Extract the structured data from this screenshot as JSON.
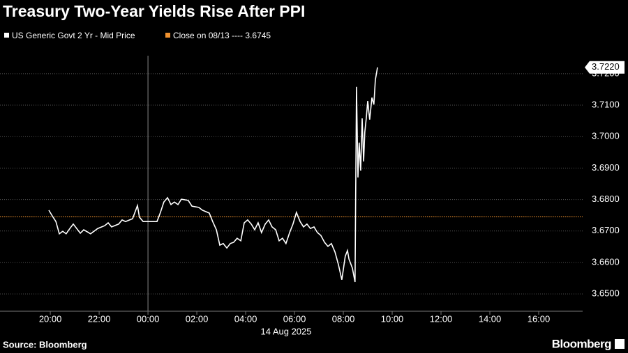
{
  "chart_data": {
    "type": "line",
    "title": "Treasury Two-Year Yields Rise After PPI",
    "series": [
      {
        "name": "US Generic Govt 2 Yr - Mid Price",
        "color": "#ffffff",
        "end_label": "3.7220",
        "x": [
          -4.06,
          -3.92,
          -3.77,
          -3.63,
          -3.49,
          -3.35,
          -3.2,
          -3.06,
          -2.92,
          -2.77,
          -2.63,
          -2.35,
          -2.06,
          -1.77,
          -1.63,
          -1.49,
          -1.2,
          -1.06,
          -0.92,
          -0.63,
          -0.43,
          -0.35,
          -0.2,
          0.08,
          0.37,
          0.51,
          0.65,
          0.8,
          0.94,
          1.08,
          1.23,
          1.37,
          1.65,
          1.8,
          2.08,
          2.23,
          2.51,
          2.65,
          2.8,
          2.94,
          3.08,
          3.23,
          3.37,
          3.51,
          3.65,
          3.8,
          3.94,
          4.08,
          4.23,
          4.37,
          4.51,
          4.65,
          4.8,
          4.94,
          5.08,
          5.23,
          5.37,
          5.51,
          5.65,
          5.8,
          5.94,
          6.08,
          6.23,
          6.37,
          6.51,
          6.65,
          6.8,
          6.94,
          7.08,
          7.23,
          7.37,
          7.51,
          7.66,
          7.8,
          7.94,
          8.08,
          8.17,
          8.23,
          8.37,
          8.48,
          8.54,
          8.6,
          8.65,
          8.71,
          8.77,
          8.83,
          8.88,
          8.94,
          9.0,
          9.08,
          9.17,
          9.25,
          9.31,
          9.4
        ],
        "values": [
          3.6766,
          3.6748,
          3.673,
          3.6691,
          3.6699,
          3.6691,
          3.6708,
          3.6722,
          3.6708,
          3.6693,
          3.6704,
          3.6691,
          3.6708,
          3.6717,
          3.6726,
          3.6713,
          3.6722,
          3.6735,
          3.673,
          3.6739,
          3.6781,
          3.6744,
          3.673,
          3.673,
          3.673,
          3.6759,
          3.6792,
          3.6806,
          3.6784,
          3.6792,
          3.6784,
          3.6801,
          3.6797,
          3.6779,
          3.6775,
          3.6766,
          3.6757,
          3.673,
          3.6704,
          3.6655,
          3.666,
          3.6646,
          3.666,
          3.6664,
          3.6677,
          3.6669,
          3.6726,
          3.6735,
          3.6722,
          3.6704,
          3.6726,
          3.6695,
          3.6722,
          3.6735,
          3.6713,
          3.6704,
          3.6669,
          3.6677,
          3.666,
          3.6695,
          3.6722,
          3.6759,
          3.673,
          3.6713,
          3.6722,
          3.6708,
          3.6713,
          3.6695,
          3.6686,
          3.6664,
          3.6651,
          3.666,
          3.6633,
          3.6593,
          3.6545,
          3.662,
          3.6638,
          3.6611,
          3.6582,
          3.6538,
          3.7158,
          3.687,
          3.6981,
          3.6892,
          3.7058,
          3.6921,
          3.7014,
          3.7058,
          3.7113,
          3.7054,
          3.7124,
          3.7102,
          3.718,
          3.722
        ]
      }
    ],
    "reference_line": {
      "name": "Close on 08/13 ----",
      "value": 3.6745,
      "color": "#f0922f"
    },
    "xlim": [
      -6.06,
      17.8
    ],
    "xticks": [
      {
        "value": -4,
        "label": "20:00"
      },
      {
        "value": -2,
        "label": "22:00"
      },
      {
        "value": 0,
        "label": "00:00"
      },
      {
        "value": 2,
        "label": "02:00"
      },
      {
        "value": 4,
        "label": "04:00"
      },
      {
        "value": 6,
        "label": "06:00"
      },
      {
        "value": 8,
        "label": "08:00"
      },
      {
        "value": 10,
        "label": "10:00"
      },
      {
        "value": 12,
        "label": "12:00"
      },
      {
        "value": 14,
        "label": "14:00"
      },
      {
        "value": 16,
        "label": "16:00"
      }
    ],
    "date_label": {
      "value": 0,
      "label": "14 Aug 2025"
    },
    "ylim": [
      3.6445,
      3.7235
    ],
    "yticks": [
      {
        "value": 3.65,
        "label": "3.6500"
      },
      {
        "value": 3.66,
        "label": "3.6600"
      },
      {
        "value": 3.67,
        "label": "3.6700"
      },
      {
        "value": 3.68,
        "label": "3.6800"
      },
      {
        "value": 3.69,
        "label": "3.6900"
      },
      {
        "value": 3.7,
        "label": "3.7000"
      },
      {
        "value": 3.71,
        "label": "3.7100"
      },
      {
        "value": 3.72,
        "label": "3.7200"
      }
    ],
    "grid": true,
    "source": "Source: Bloomberg",
    "brand": "Bloomberg"
  }
}
